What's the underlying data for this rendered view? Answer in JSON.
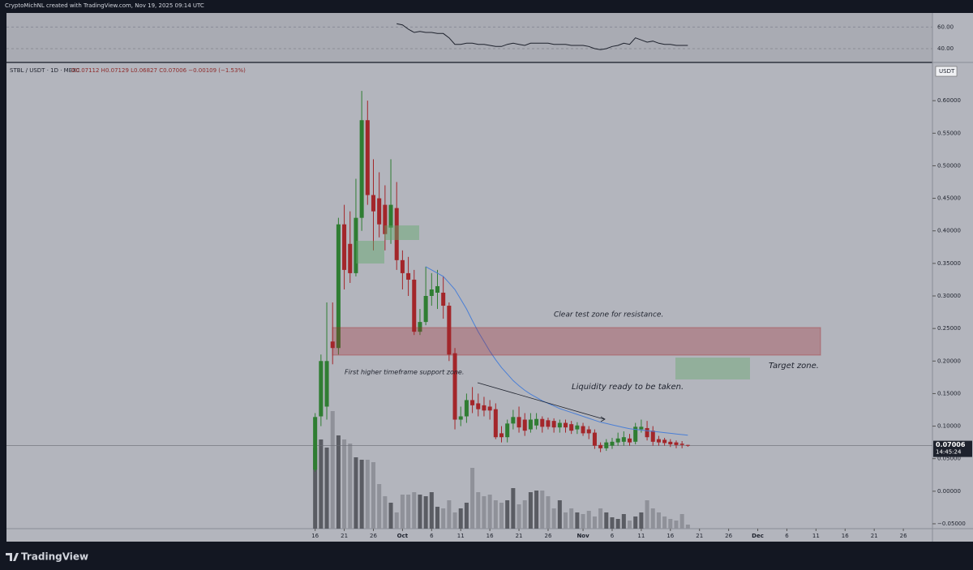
{
  "header": {
    "credit": "CryptoMichNL created with TradingView.com, Nov 19, 2025 09:14 UTC",
    "symbol": "STBL / USDT · 1D · MEXC",
    "ohlc": "O0.07112 H0.07129 L0.06827 C0.07006 −0.00109 (−1.53%)",
    "currency": "USDT",
    "countdown": "14:45:24",
    "logo": "TradingView"
  },
  "annotations": [
    "Clear test zone for resistance.",
    "Target zone.",
    "First higher timeframe support zone.",
    "Liquidity ready to be taken."
  ],
  "chart_data": {
    "type": "candlestick",
    "x": [
      "09-16",
      "09-17",
      "09-18",
      "09-19",
      "09-20",
      "09-21",
      "09-22",
      "09-23",
      "09-24",
      "09-25",
      "09-26",
      "09-27",
      "09-28",
      "09-29",
      "09-30",
      "10-01",
      "10-02",
      "10-03",
      "10-04",
      "10-05",
      "10-06",
      "10-07",
      "10-08",
      "10-09",
      "10-10",
      "10-11",
      "10-12",
      "10-13",
      "10-14",
      "10-15",
      "10-16",
      "10-17",
      "10-18",
      "10-19",
      "10-20",
      "10-21",
      "10-22",
      "10-23",
      "10-24",
      "10-25",
      "10-26",
      "10-27",
      "10-28",
      "10-29",
      "10-30",
      "10-31",
      "11-01",
      "11-02",
      "11-03",
      "11-04",
      "11-05",
      "11-06",
      "11-07",
      "11-08",
      "11-09",
      "11-10",
      "11-11",
      "11-12",
      "11-13",
      "11-14",
      "11-15",
      "11-16",
      "11-17",
      "11-18",
      "11-19"
    ],
    "open": [
      0.033,
      0.115,
      0.13,
      0.23,
      0.22,
      0.41,
      0.38,
      0.335,
      0.42,
      0.57,
      0.455,
      0.45,
      0.44,
      0.405,
      0.435,
      0.355,
      0.335,
      0.325,
      0.245,
      0.26,
      0.3,
      0.305,
      0.305,
      0.285,
      0.212,
      0.11,
      0.115,
      0.14,
      0.135,
      0.132,
      0.13,
      0.126,
      0.089,
      0.083,
      0.104,
      0.114,
      0.11,
      0.095,
      0.101,
      0.111,
      0.109,
      0.108,
      0.098,
      0.105,
      0.103,
      0.095,
      0.1,
      0.095,
      0.09,
      0.071,
      0.066,
      0.07,
      0.075,
      0.076,
      0.081,
      0.076,
      0.095,
      0.097,
      0.093,
      0.08,
      0.079,
      0.076,
      0.075,
      0.073,
      0.07112
    ],
    "high": [
      0.12,
      0.21,
      0.29,
      0.29,
      0.42,
      0.44,
      0.43,
      0.48,
      0.615,
      0.6,
      0.51,
      0.49,
      0.47,
      0.51,
      0.475,
      0.37,
      0.36,
      0.34,
      0.28,
      0.345,
      0.335,
      0.34,
      0.33,
      0.29,
      0.22,
      0.13,
      0.15,
      0.16,
      0.15,
      0.145,
      0.14,
      0.135,
      0.1,
      0.11,
      0.125,
      0.13,
      0.12,
      0.12,
      0.12,
      0.115,
      0.113,
      0.112,
      0.11,
      0.11,
      0.108,
      0.106,
      0.105,
      0.1,
      0.095,
      0.075,
      0.08,
      0.082,
      0.09,
      0.092,
      0.088,
      0.105,
      0.11,
      0.108,
      0.1,
      0.085,
      0.082,
      0.08,
      0.078,
      0.077,
      0.07129
    ],
    "low": [
      0.03,
      0.1,
      0.11,
      0.195,
      0.21,
      0.31,
      0.32,
      0.33,
      0.4,
      0.44,
      0.37,
      0.39,
      0.37,
      0.38,
      0.34,
      0.31,
      0.3,
      0.24,
      0.24,
      0.255,
      0.285,
      0.28,
      0.265,
      0.2,
      0.095,
      0.1,
      0.105,
      0.12,
      0.115,
      0.115,
      0.11,
      0.08,
      0.075,
      0.075,
      0.095,
      0.09,
      0.085,
      0.09,
      0.095,
      0.09,
      0.095,
      0.09,
      0.09,
      0.09,
      0.088,
      0.088,
      0.085,
      0.08,
      0.065,
      0.06,
      0.062,
      0.065,
      0.07,
      0.07,
      0.07,
      0.072,
      0.09,
      0.078,
      0.07,
      0.07,
      0.07,
      0.068,
      0.066,
      0.066,
      0.06827
    ],
    "close": [
      0.114,
      0.2,
      0.2,
      0.22,
      0.41,
      0.34,
      0.335,
      0.42,
      0.57,
      0.455,
      0.43,
      0.41,
      0.395,
      0.44,
      0.355,
      0.335,
      0.325,
      0.245,
      0.26,
      0.3,
      0.31,
      0.315,
      0.285,
      0.21,
      0.11,
      0.115,
      0.14,
      0.132,
      0.126,
      0.124,
      0.124,
      0.083,
      0.083,
      0.104,
      0.114,
      0.098,
      0.093,
      0.11,
      0.111,
      0.099,
      0.099,
      0.098,
      0.105,
      0.098,
      0.093,
      0.101,
      0.089,
      0.089,
      0.07,
      0.066,
      0.075,
      0.076,
      0.081,
      0.083,
      0.075,
      0.099,
      0.099,
      0.083,
      0.076,
      0.075,
      0.074,
      0.072,
      0.071,
      0.0711,
      0.07006
    ],
    "volume": [
      100,
      110,
      100,
      145,
      115,
      110,
      105,
      88,
      85,
      85,
      82,
      55,
      40,
      32,
      20,
      42,
      42,
      45,
      42,
      40,
      45,
      27,
      25,
      35,
      20,
      25,
      32,
      75,
      45,
      40,
      42,
      35,
      32,
      35,
      50,
      30,
      35,
      45,
      47,
      47,
      40,
      25,
      35,
      20,
      25,
      20,
      18,
      22,
      15,
      25,
      20,
      14,
      12,
      18,
      10,
      15,
      20,
      35,
      25,
      20,
      15,
      12,
      10,
      18,
      5
    ],
    "ma": [
      null,
      null,
      null,
      null,
      null,
      null,
      null,
      null,
      null,
      null,
      null,
      null,
      null,
      null,
      null,
      null,
      null,
      null,
      null,
      0.345,
      0.34,
      0.335,
      0.33,
      0.32,
      0.31,
      0.295,
      0.28,
      0.262,
      0.245,
      0.23,
      0.215,
      0.202,
      0.19,
      0.18,
      0.17,
      0.162,
      0.155,
      0.149,
      0.144,
      0.139,
      0.135,
      0.131,
      0.127,
      0.124,
      0.121,
      0.118,
      0.115,
      0.112,
      0.109,
      0.106,
      0.104,
      0.102,
      0.1,
      0.098,
      0.096,
      0.095,
      0.094,
      0.093,
      0.092,
      0.091,
      0.09,
      0.089,
      0.088,
      0.087,
      0.086
    ],
    "rsi": [
      null,
      null,
      null,
      null,
      null,
      null,
      null,
      null,
      null,
      null,
      null,
      null,
      null,
      null,
      63,
      62,
      58,
      55,
      56,
      55,
      55,
      54,
      54,
      50,
      44,
      44,
      45,
      45,
      44,
      44,
      43,
      42,
      42,
      44,
      45,
      44,
      43,
      45,
      45,
      45,
      45,
      44,
      44,
      44,
      43,
      43,
      43,
      42,
      40,
      39,
      40,
      42,
      43,
      45,
      44,
      50,
      48,
      46,
      47,
      45,
      44,
      44,
      43,
      43,
      43
    ],
    "up_color": "#2f7d32",
    "down_color": "#a3262a",
    "up_volume_color": "#5a5c63",
    "down_volume_color": "#8f9199",
    "ma_color": "#4a7fd6",
    "rsi_color": "#1e222d",
    "xlim": [
      "07-25",
      "12-31"
    ],
    "xticks": [
      {
        "value": "09-16",
        "label": "16"
      },
      {
        "value": "09-21",
        "label": "21"
      },
      {
        "value": "09-26",
        "label": "26"
      },
      {
        "value": "10-01",
        "label": "Oct"
      },
      {
        "value": "10-06",
        "label": "6"
      },
      {
        "value": "10-11",
        "label": "11"
      },
      {
        "value": "10-16",
        "label": "16"
      },
      {
        "value": "10-21",
        "label": "21"
      },
      {
        "value": "10-26",
        "label": "26"
      },
      {
        "value": "11-01",
        "label": "Nov"
      },
      {
        "value": "11-06",
        "label": "6"
      },
      {
        "value": "11-11",
        "label": "11"
      },
      {
        "value": "11-16",
        "label": "16"
      },
      {
        "value": "11-21",
        "label": "21"
      },
      {
        "value": "11-26",
        "label": "26"
      },
      {
        "value": "12-01",
        "label": "Dec"
      },
      {
        "value": "12-06",
        "label": "6"
      },
      {
        "value": "12-11",
        "label": "11"
      },
      {
        "value": "12-16",
        "label": "16"
      },
      {
        "value": "12-21",
        "label": "21"
      },
      {
        "value": "12-26",
        "label": "26"
      }
    ],
    "ylim": [
      -0.0575,
      0.6575
    ],
    "yticks": [
      {
        "value": 0.6,
        "label": "0.60000"
      },
      {
        "value": 0.55,
        "label": "0.55000"
      },
      {
        "value": 0.5,
        "label": "0.50000"
      },
      {
        "value": 0.45,
        "label": "0.45000"
      },
      {
        "value": 0.4,
        "label": "0.40000"
      },
      {
        "value": 0.35,
        "label": "0.35000"
      },
      {
        "value": 0.3,
        "label": "0.30000"
      },
      {
        "value": 0.25,
        "label": "0.25000"
      },
      {
        "value": 0.2,
        "label": "0.20000"
      },
      {
        "value": 0.15,
        "label": "0.15000"
      },
      {
        "value": 0.1,
        "label": "0.10000"
      },
      {
        "value": 0.05,
        "label": "0.05000"
      },
      {
        "value": 0,
        "label": "0.00000"
      },
      {
        "value": -0.05,
        "label": "−0.05000"
      }
    ],
    "rsi_ylim": [
      28,
      73
    ],
    "rsi_ticks": [
      {
        "value": 60,
        "label": "60.00"
      },
      {
        "value": 40,
        "label": "40.00"
      }
    ]
  }
}
